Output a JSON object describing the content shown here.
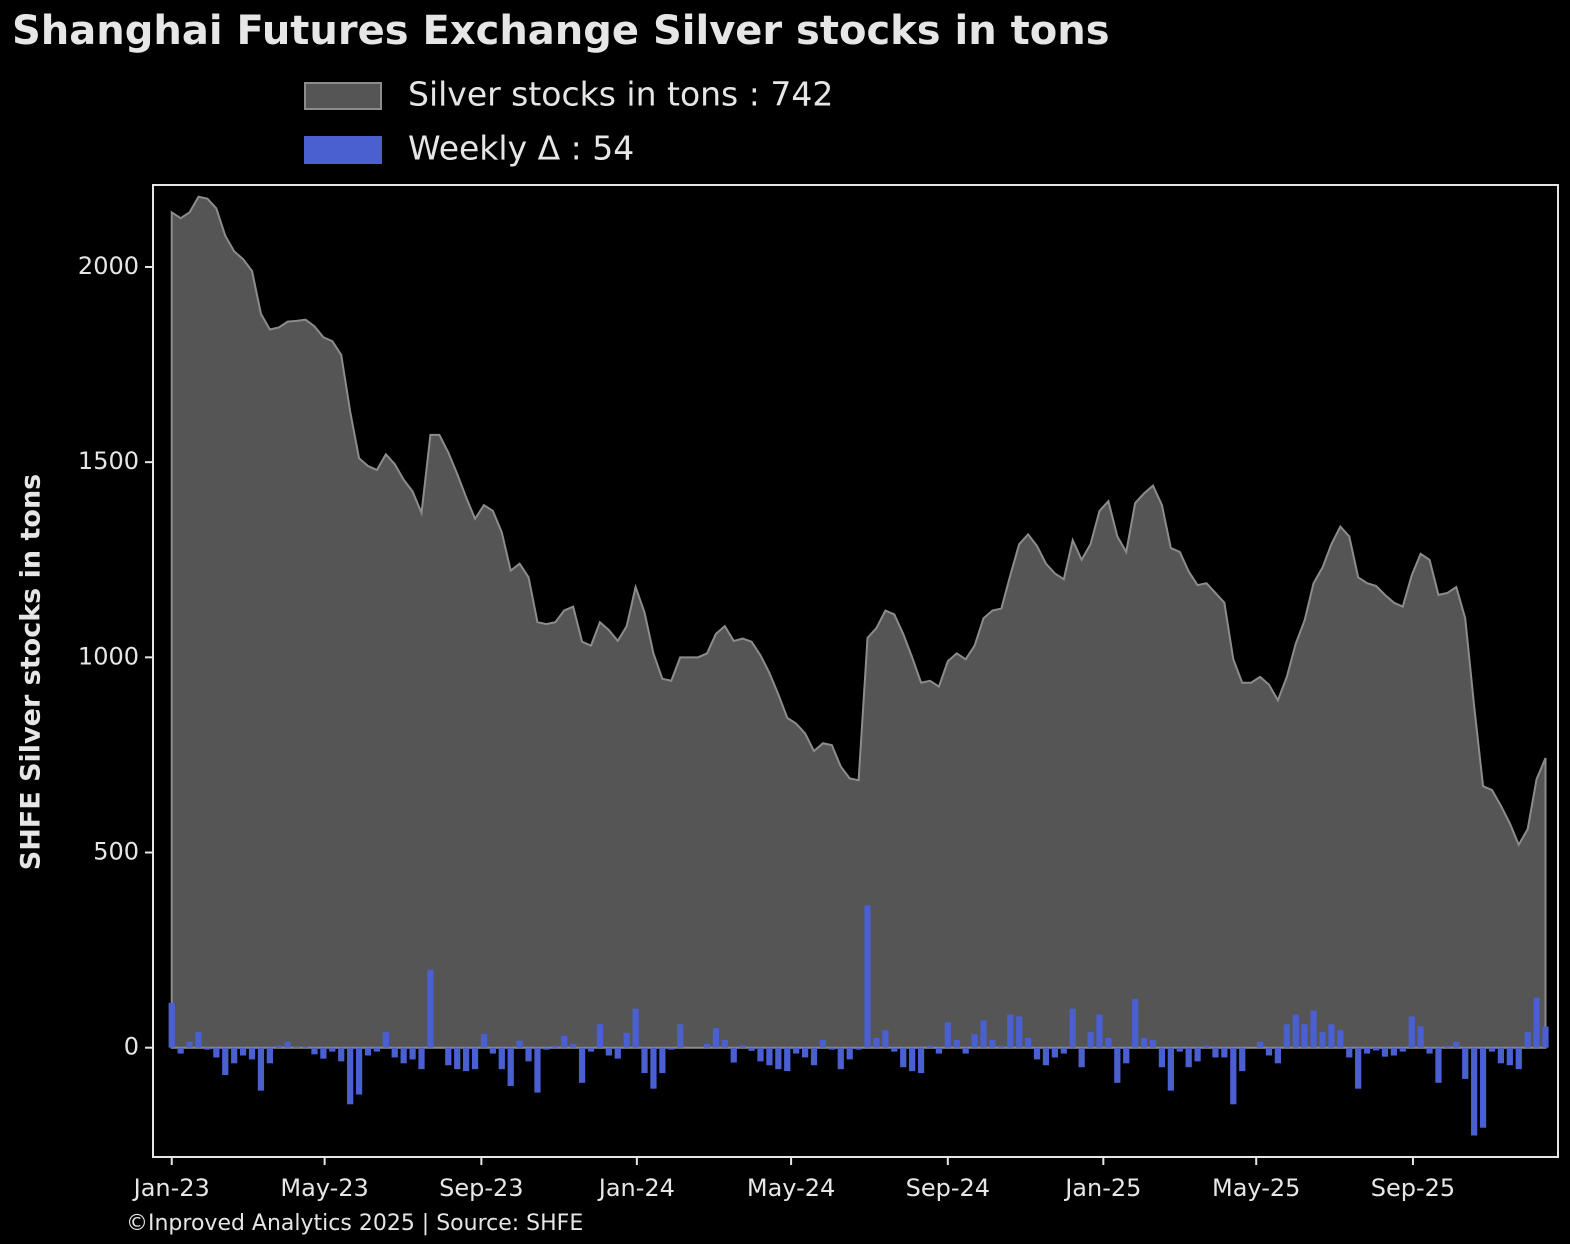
{
  "chart_data": {
    "type": "area",
    "title": "Shanghai Futures Exchange Silver stocks in tons",
    "y_label": "SHFE Silver stocks in tons",
    "footer": "©Inproved Analytics 2025 | Source: SHFE",
    "x": [
      0,
      1,
      2,
      3,
      4,
      5,
      6,
      7,
      8,
      9,
      10,
      11,
      12,
      13,
      14,
      15,
      16,
      17,
      18,
      19,
      20,
      21,
      22,
      23,
      24,
      25,
      26,
      27,
      28,
      29,
      30,
      31,
      32,
      33,
      34,
      35,
      36,
      37,
      38,
      39,
      40,
      41,
      42,
      43,
      44,
      45,
      46,
      47,
      48,
      49,
      50,
      51,
      52,
      53,
      54,
      55,
      56,
      57,
      58,
      59,
      60,
      61,
      62,
      63,
      64,
      65,
      66,
      67,
      68,
      69,
      70,
      71,
      72,
      73,
      74,
      75,
      76,
      77,
      78,
      79,
      80,
      81,
      82,
      83,
      84,
      85,
      86,
      87,
      88,
      89,
      90,
      91,
      92,
      93,
      94,
      95,
      96,
      97,
      98,
      99,
      100,
      101,
      102,
      103,
      104,
      105,
      106,
      107,
      108,
      109,
      110,
      111,
      112,
      113,
      114,
      115,
      116,
      117,
      118,
      119,
      120,
      121,
      122,
      123,
      124,
      125,
      126,
      127,
      128,
      129,
      130,
      131,
      132,
      133,
      134,
      135,
      136,
      137,
      138,
      139,
      140,
      141,
      142,
      143,
      144,
      145,
      146,
      147,
      148,
      149,
      150,
      151,
      152,
      153,
      154
    ],
    "series": [
      {
        "name": "Silver stocks in tons : 742",
        "type": "area",
        "color": "#555555",
        "edgecolor": "#8c8c8c",
        "values": [
          2140,
          2125,
          2140,
          2180,
          2175,
          2150,
          2080,
          2040,
          2020,
          1990,
          1880,
          1840,
          1845,
          1860,
          1862,
          1865,
          1848,
          1820,
          1810,
          1775,
          1630,
          1510,
          1490,
          1480,
          1520,
          1495,
          1455,
          1425,
          1370,
          1570,
          1570,
          1525,
          1470,
          1410,
          1355,
          1390,
          1375,
          1320,
          1222,
          1240,
          1205,
          1090,
          1085,
          1090,
          1120,
          1130,
          1040,
          1030,
          1090,
          1070,
          1042,
          1080,
          1180,
          1115,
          1010,
          945,
          940,
          1000,
          1000,
          1000,
          1010,
          1060,
          1080,
          1042,
          1048,
          1040,
          1005,
          960,
          905,
          845,
          830,
          805,
          760,
          780,
          775,
          720,
          690,
          685,
          1050,
          1075,
          1120,
          1110,
          1060,
          1000,
          935,
          940,
          925,
          990,
          1010,
          995,
          1030,
          1100,
          1120,
          1125,
          1210,
          1290,
          1315,
          1285,
          1240,
          1215,
          1200,
          1300,
          1250,
          1290,
          1375,
          1400,
          1310,
          1270,
          1395,
          1420,
          1440,
          1390,
          1280,
          1270,
          1220,
          1185,
          1190,
          1165,
          1140,
          995,
          935,
          935,
          950,
          930,
          890,
          950,
          1035,
          1095,
          1190,
          1230,
          1290,
          1335,
          1310,
          1205,
          1190,
          1183,
          1160,
          1140,
          1130,
          1210,
          1265,
          1250,
          1160,
          1165,
          1180,
          1100,
          875,
          670,
          660,
          620,
          575,
          520,
          560,
          688,
          742
        ]
      },
      {
        "name": "Weekly Δ : 54",
        "type": "bar",
        "color": "#4a5fd0",
        "values": [
          115,
          -15,
          15,
          40,
          -5,
          -25,
          -70,
          -40,
          -20,
          -30,
          -110,
          -40,
          5,
          15,
          2,
          3,
          -17,
          -28,
          -10,
          -35,
          -145,
          -120,
          -20,
          -10,
          40,
          -25,
          -40,
          -30,
          -55,
          200,
          0,
          -45,
          -55,
          -60,
          -55,
          35,
          -15,
          -55,
          -98,
          18,
          -35,
          -115,
          -5,
          5,
          30,
          10,
          -90,
          -10,
          60,
          -20,
          -28,
          38,
          100,
          -65,
          -105,
          -65,
          -5,
          60,
          0,
          0,
          10,
          50,
          20,
          -38,
          6,
          -8,
          -35,
          -45,
          -55,
          -60,
          -15,
          -25,
          -45,
          20,
          -5,
          -55,
          -30,
          -5,
          365,
          25,
          45,
          -10,
          -50,
          -60,
          -65,
          5,
          -15,
          65,
          20,
          -15,
          35,
          70,
          20,
          5,
          85,
          80,
          25,
          -30,
          -45,
          -25,
          -15,
          100,
          -50,
          40,
          85,
          25,
          -90,
          -40,
          125,
          25,
          20,
          -50,
          -110,
          -10,
          -50,
          -35,
          5,
          -25,
          -25,
          -145,
          -60,
          0,
          15,
          -20,
          -40,
          60,
          85,
          60,
          95,
          40,
          60,
          45,
          -25,
          -105,
          -15,
          -7,
          -23,
          -20,
          -10,
          80,
          55,
          -15,
          -90,
          5,
          15,
          -80,
          -225,
          -205,
          -10,
          -40,
          -45,
          -55,
          40,
          128,
          54
        ]
      }
    ],
    "xlim": [
      -2.1,
      155.4
    ],
    "xticks": [
      {
        "value": 0,
        "label": "Jan-23"
      },
      {
        "value": 17.14,
        "label": "May-23"
      },
      {
        "value": 34.71,
        "label": "Sep-23"
      },
      {
        "value": 52.14,
        "label": "Jan-24"
      },
      {
        "value": 69.43,
        "label": "May-24"
      },
      {
        "value": 87,
        "label": "Sep-24"
      },
      {
        "value": 104.43,
        "label": "Jan-25"
      },
      {
        "value": 121.57,
        "label": "May-25"
      },
      {
        "value": 139.14,
        "label": "Sep-25"
      }
    ],
    "ylim": [
      -280,
      2210
    ],
    "yticks": [
      0,
      500,
      1000,
      1500,
      2000
    ],
    "grid": false
  }
}
